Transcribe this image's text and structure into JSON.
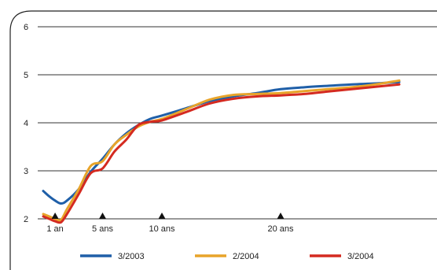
{
  "chart_data": {
    "type": "line",
    "title": "",
    "xlabel": "",
    "ylabel": "",
    "xlim": [
      0,
      30
    ],
    "ylim": [
      2,
      6
    ],
    "y_ticks": [
      2,
      3,
      4,
      5,
      6
    ],
    "grid": "horizontal",
    "legend_position": "bottom",
    "x_markers": [
      {
        "x": 1,
        "label": "1 an"
      },
      {
        "x": 5,
        "label": "5 ans"
      },
      {
        "x": 10,
        "label": "10 ans"
      },
      {
        "x": 20,
        "label": "20 ans"
      }
    ],
    "series": [
      {
        "name": "3/2003",
        "color": "#1f5fa8",
        "points": [
          [
            0,
            2.58
          ],
          [
            0.5,
            2.47
          ],
          [
            1,
            2.38
          ],
          [
            1.5,
            2.32
          ],
          [
            2,
            2.38
          ],
          [
            3,
            2.62
          ],
          [
            4,
            2.98
          ],
          [
            5,
            3.25
          ],
          [
            6,
            3.55
          ],
          [
            7,
            3.78
          ],
          [
            8,
            3.95
          ],
          [
            9,
            4.08
          ],
          [
            10,
            4.15
          ],
          [
            12,
            4.3
          ],
          [
            14,
            4.45
          ],
          [
            16,
            4.55
          ],
          [
            18,
            4.62
          ],
          [
            20,
            4.7
          ],
          [
            22,
            4.74
          ],
          [
            24,
            4.77
          ],
          [
            26,
            4.8
          ],
          [
            28,
            4.82
          ],
          [
            30,
            4.85
          ]
        ]
      },
      {
        "name": "2/2004",
        "color": "#e8a42a",
        "points": [
          [
            0,
            2.1
          ],
          [
            0.5,
            2.05
          ],
          [
            1,
            2.0
          ],
          [
            1.5,
            1.98
          ],
          [
            2,
            2.2
          ],
          [
            3,
            2.62
          ],
          [
            4,
            3.1
          ],
          [
            5,
            3.2
          ],
          [
            6,
            3.55
          ],
          [
            7,
            3.75
          ],
          [
            8,
            3.92
          ],
          [
            9,
            4.02
          ],
          [
            10,
            4.08
          ],
          [
            12,
            4.28
          ],
          [
            14,
            4.48
          ],
          [
            16,
            4.58
          ],
          [
            18,
            4.6
          ],
          [
            20,
            4.62
          ],
          [
            22,
            4.66
          ],
          [
            24,
            4.7
          ],
          [
            26,
            4.74
          ],
          [
            28,
            4.8
          ],
          [
            30,
            4.88
          ]
        ]
      },
      {
        "name": "3/2004",
        "color": "#d42a20",
        "points": [
          [
            0,
            2.05
          ],
          [
            0.5,
            2.0
          ],
          [
            1,
            1.95
          ],
          [
            1.5,
            1.93
          ],
          [
            2,
            2.1
          ],
          [
            3,
            2.52
          ],
          [
            4,
            2.95
          ],
          [
            5,
            3.05
          ],
          [
            6,
            3.4
          ],
          [
            7,
            3.65
          ],
          [
            8,
            3.95
          ],
          [
            9,
            4.02
          ],
          [
            10,
            4.05
          ],
          [
            12,
            4.22
          ],
          [
            14,
            4.4
          ],
          [
            16,
            4.5
          ],
          [
            18,
            4.55
          ],
          [
            20,
            4.57
          ],
          [
            22,
            4.6
          ],
          [
            24,
            4.65
          ],
          [
            26,
            4.7
          ],
          [
            28,
            4.75
          ],
          [
            30,
            4.8
          ]
        ]
      }
    ]
  }
}
